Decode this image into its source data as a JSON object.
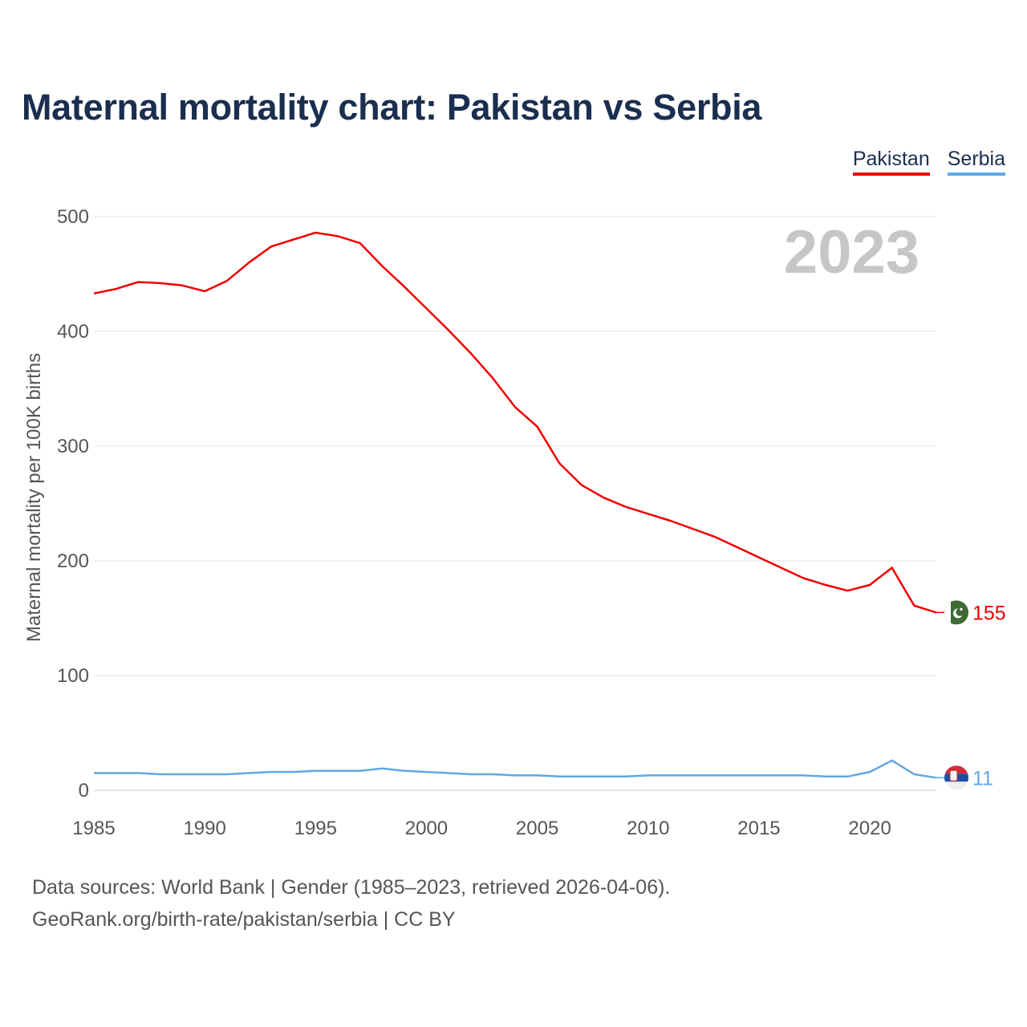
{
  "title": "Maternal mortality chart: Pakistan vs Serbia",
  "legend": [
    {
      "name": "Pakistan",
      "color": "#f00000"
    },
    {
      "name": "Serbia",
      "color": "#5fa8e6"
    }
  ],
  "year_label": "2023",
  "source": {
    "line1": "Data sources: World Bank | Gender (1985–2023, retrieved 2026-04-06).",
    "line2": "GeoRank.org/birth-rate/pakistan/serbia | CC BY"
  },
  "chart_data": {
    "type": "line",
    "title": "Maternal mortality chart: Pakistan vs Serbia",
    "xlabel": "",
    "ylabel": "Maternal mortality per 100K births",
    "xlim": [
      1985,
      2023
    ],
    "ylim": [
      0,
      500
    ],
    "grid": true,
    "x_ticks": [
      1985,
      1990,
      1995,
      2000,
      2005,
      2010,
      2015,
      2020
    ],
    "y_ticks": [
      0,
      100,
      200,
      300,
      400,
      500
    ],
    "x": [
      1985,
      1986,
      1987,
      1988,
      1989,
      1990,
      1991,
      1992,
      1993,
      1994,
      1995,
      1996,
      1997,
      1998,
      1999,
      2000,
      2001,
      2002,
      2003,
      2004,
      2005,
      2006,
      2007,
      2008,
      2009,
      2010,
      2011,
      2012,
      2013,
      2014,
      2015,
      2016,
      2017,
      2018,
      2019,
      2020,
      2021,
      2022,
      2023
    ],
    "series": [
      {
        "name": "Pakistan",
        "color": "#f00000",
        "end_label": "155",
        "flag": "pk",
        "values": [
          433,
          437,
          443,
          442,
          440,
          435,
          444,
          460,
          474,
          480,
          486,
          483,
          477,
          457,
          439,
          420,
          401,
          381,
          359,
          334,
          317,
          285,
          266,
          255,
          247,
          241,
          235,
          228,
          221,
          212,
          203,
          194,
          185,
          179,
          174,
          179,
          194,
          161,
          155
        ]
      },
      {
        "name": "Serbia",
        "color": "#5fa8e6",
        "end_label": "11",
        "flag": "rs",
        "values": [
          15,
          15,
          15,
          14,
          14,
          14,
          14,
          15,
          16,
          16,
          17,
          17,
          17,
          19,
          17,
          16,
          15,
          14,
          14,
          13,
          13,
          12,
          12,
          12,
          12,
          13,
          13,
          13,
          13,
          13,
          13,
          13,
          13,
          12,
          12,
          16,
          26,
          14,
          11
        ]
      }
    ]
  }
}
